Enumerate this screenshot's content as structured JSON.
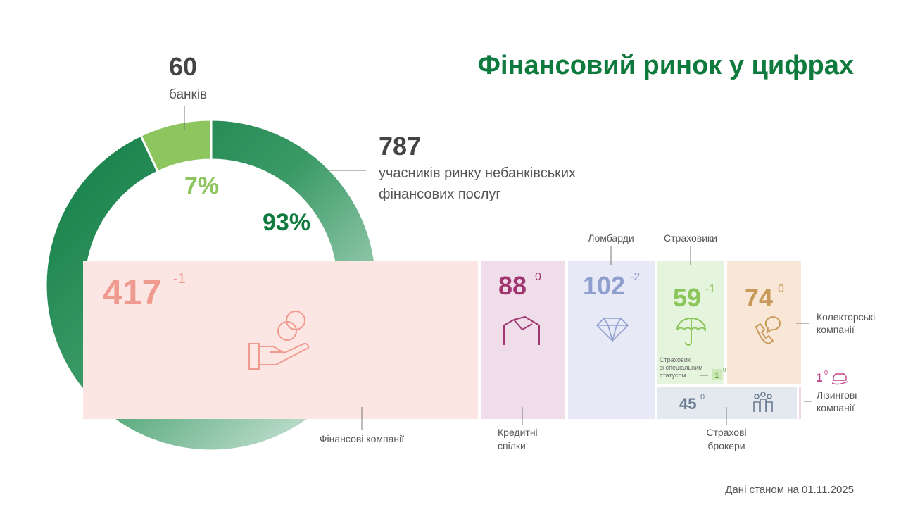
{
  "title": "Фінансовий ринок у цифрах",
  "chart_data": {
    "type": "pie",
    "values": [
      7,
      93
    ],
    "value_labels": [
      "7%",
      "93%"
    ],
    "colors": [
      "#8dc65f",
      "#1a8a4e"
    ]
  },
  "banks": {
    "count": "60",
    "label": "банків"
  },
  "nonbank": {
    "count": "787",
    "label_lines": [
      "учасників ринку небанківських",
      "фінансових послуг"
    ]
  },
  "segments": [
    {
      "label_lines": [
        "Фінансові компанії"
      ],
      "count": "417",
      "change": "-1"
    },
    {
      "label_lines": [
        "Кредитні",
        "спілки"
      ],
      "count": "88",
      "change": "0"
    },
    {
      "label_lines": [
        "Ломбарди"
      ],
      "count": "102",
      "change": "-2"
    },
    {
      "label_lines": [
        "Страховики"
      ],
      "count": "59",
      "change": "-1"
    },
    {
      "label_lines": [
        "Колекторські",
        "компанії"
      ],
      "count": "74",
      "change": "0"
    },
    {
      "label_lines": [
        "Страховик",
        "зі спеціальним",
        "статусом"
      ],
      "count": "1",
      "change": "0"
    },
    {
      "label_lines": [
        "Страхові",
        "брокери"
      ],
      "count": "45",
      "change": "0"
    },
    {
      "label_lines": [
        "Лізингові",
        "компанії"
      ],
      "count": "1",
      "change": "0"
    }
  ],
  "footnote": "Дані станом на 01.11.2025"
}
